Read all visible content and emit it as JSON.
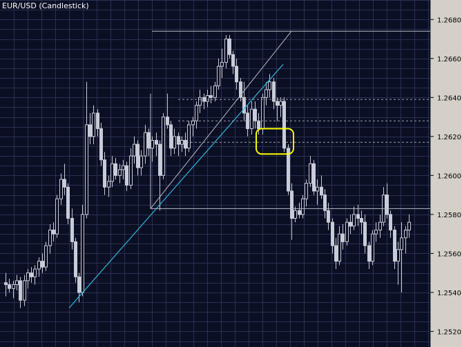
{
  "window": {
    "title": "EUR/USD (Candlestick)"
  },
  "chart_data": {
    "type": "candlestick",
    "title": "EUR/USD (Candlestick)",
    "symbol": "EUR/USD",
    "y_ticks": [
      "1.2520",
      "1.2540",
      "1.2560",
      "1.2580",
      "1.2600",
      "1.2620",
      "1.2640",
      "1.2660",
      "1.2680"
    ],
    "y_tick_values": [
      1.252,
      1.254,
      1.256,
      1.258,
      1.26,
      1.262,
      1.264,
      1.266,
      1.268
    ],
    "ylim": [
      1.2512,
      1.269
    ],
    "grid": true,
    "candles": [
      [
        1.2545,
        1.255,
        1.2538,
        1.2544
      ],
      [
        1.2544,
        1.2547,
        1.254,
        1.2542
      ],
      [
        1.2542,
        1.2546,
        1.2537,
        1.2544
      ],
      [
        1.2544,
        1.2549,
        1.2541,
        1.2546
      ],
      [
        1.2546,
        1.2548,
        1.2532,
        1.2536
      ],
      [
        1.2536,
        1.2549,
        1.2533,
        1.2546
      ],
      [
        1.2546,
        1.2552,
        1.2542,
        1.255
      ],
      [
        1.255,
        1.2553,
        1.2545,
        1.2548
      ],
      [
        1.2548,
        1.2554,
        1.2544,
        1.2552
      ],
      [
        1.2552,
        1.2558,
        1.2548,
        1.2556
      ],
      [
        1.2556,
        1.256,
        1.255,
        1.2553
      ],
      [
        1.2553,
        1.2566,
        1.2551,
        1.2564
      ],
      [
        1.2564,
        1.2575,
        1.256,
        1.2572
      ],
      [
        1.2572,
        1.2576,
        1.2566,
        1.257
      ],
      [
        1.257,
        1.259,
        1.2568,
        1.2588
      ],
      [
        1.2588,
        1.2601,
        1.2585,
        1.2598
      ],
      [
        1.2598,
        1.2606,
        1.259,
        1.2594
      ],
      [
        1.2594,
        1.2596,
        1.2575,
        1.2578
      ],
      [
        1.2578,
        1.2583,
        1.2562,
        1.2566
      ],
      [
        1.2566,
        1.2568,
        1.2545,
        1.2548
      ],
      [
        1.2548,
        1.255,
        1.2535,
        1.254
      ],
      [
        1.254,
        1.2585,
        1.2538,
        1.258
      ],
      [
        1.258,
        1.2648,
        1.2578,
        1.2626
      ],
      [
        1.2626,
        1.2632,
        1.2616,
        1.262
      ],
      [
        1.262,
        1.2636,
        1.2616,
        1.2632
      ],
      [
        1.2632,
        1.2634,
        1.262,
        1.2624
      ],
      [
        1.2624,
        1.2627,
        1.2605,
        1.2608
      ],
      [
        1.2608,
        1.2612,
        1.259,
        1.2594
      ],
      [
        1.2594,
        1.26,
        1.2589,
        1.2597
      ],
      [
        1.2597,
        1.261,
        1.2594,
        1.2606
      ],
      [
        1.2606,
        1.2609,
        1.2598,
        1.26
      ],
      [
        1.26,
        1.2606,
        1.2596,
        1.2603
      ],
      [
        1.2603,
        1.2608,
        1.2598,
        1.2605
      ],
      [
        1.2605,
        1.2607,
        1.2592,
        1.2595
      ],
      [
        1.2595,
        1.2614,
        1.2593,
        1.261
      ],
      [
        1.261,
        1.262,
        1.2606,
        1.2616
      ],
      [
        1.2616,
        1.2618,
        1.26,
        1.2604
      ],
      [
        1.2604,
        1.2613,
        1.26,
        1.261
      ],
      [
        1.261,
        1.2626,
        1.2606,
        1.2622
      ],
      [
        1.2622,
        1.2624,
        1.261,
        1.2614
      ],
      [
        1.2614,
        1.262,
        1.2607,
        1.2618
      ],
      [
        1.2618,
        1.2622,
        1.261,
        1.2616
      ],
      [
        1.2616,
        1.2618,
        1.2582,
        1.26
      ],
      [
        1.26,
        1.2632,
        1.2598,
        1.263
      ],
      [
        1.263,
        1.2642,
        1.2624,
        1.2626
      ],
      [
        1.2626,
        1.2628,
        1.261,
        1.2614
      ],
      [
        1.2614,
        1.2624,
        1.2611,
        1.262
      ],
      [
        1.262,
        1.2622,
        1.261,
        1.2616
      ],
      [
        1.2616,
        1.262,
        1.2612,
        1.2618
      ],
      [
        1.2618,
        1.2622,
        1.261,
        1.2614
      ],
      [
        1.2614,
        1.2628,
        1.2612,
        1.2626
      ],
      [
        1.2626,
        1.263,
        1.262,
        1.2628
      ],
      [
        1.2628,
        1.2638,
        1.2624,
        1.2636
      ],
      [
        1.2636,
        1.2644,
        1.2632,
        1.264
      ],
      [
        1.264,
        1.2642,
        1.2634,
        1.2638
      ],
      [
        1.2638,
        1.2644,
        1.2635,
        1.2641
      ],
      [
        1.2641,
        1.2646,
        1.2637,
        1.264
      ],
      [
        1.264,
        1.2648,
        1.2638,
        1.2646
      ],
      [
        1.2646,
        1.266,
        1.2644,
        1.2656
      ],
      [
        1.2656,
        1.2665,
        1.265,
        1.2658
      ],
      [
        1.2658,
        1.2672,
        1.2655,
        1.267
      ],
      [
        1.267,
        1.2672,
        1.266,
        1.2662
      ],
      [
        1.2662,
        1.2664,
        1.2652,
        1.2656
      ],
      [
        1.2656,
        1.266,
        1.2644,
        1.2648
      ],
      [
        1.2648,
        1.265,
        1.2638,
        1.264
      ],
      [
        1.264,
        1.2648,
        1.2628,
        1.2632
      ],
      [
        1.2632,
        1.2636,
        1.262,
        1.2624
      ],
      [
        1.2624,
        1.2638,
        1.2621,
        1.2634
      ],
      [
        1.2634,
        1.2638,
        1.2624,
        1.2628
      ],
      [
        1.2628,
        1.2632,
        1.2621,
        1.2624
      ],
      [
        1.2624,
        1.2642,
        1.2621,
        1.264
      ],
      [
        1.264,
        1.2648,
        1.2636,
        1.2644
      ],
      [
        1.2644,
        1.2652,
        1.264,
        1.2648
      ],
      [
        1.2648,
        1.265,
        1.2634,
        1.2638
      ],
      [
        1.2638,
        1.264,
        1.2628,
        1.2636
      ],
      [
        1.2636,
        1.264,
        1.263,
        1.2638
      ],
      [
        1.2638,
        1.264,
        1.2612,
        1.2614
      ],
      [
        1.2614,
        1.2616,
        1.259,
        1.2592
      ],
      [
        1.2592,
        1.2596,
        1.2567,
        1.2578
      ],
      [
        1.2578,
        1.2584,
        1.2576,
        1.2582
      ],
      [
        1.2582,
        1.2586,
        1.2578,
        1.258
      ],
      [
        1.258,
        1.259,
        1.2578,
        1.2588
      ],
      [
        1.2588,
        1.2598,
        1.2584,
        1.2596
      ],
      [
        1.2596,
        1.261,
        1.2594,
        1.2606
      ],
      [
        1.2606,
        1.2608,
        1.259,
        1.2592
      ],
      [
        1.2592,
        1.2598,
        1.2585,
        1.2594
      ],
      [
        1.2594,
        1.26,
        1.2588,
        1.259
      ],
      [
        1.259,
        1.2593,
        1.2578,
        1.2582
      ],
      [
        1.2582,
        1.2586,
        1.2572,
        1.2576
      ],
      [
        1.2576,
        1.2578,
        1.256,
        1.2564
      ],
      [
        1.2564,
        1.2568,
        1.2552,
        1.2556
      ],
      [
        1.2556,
        1.2574,
        1.2554,
        1.257
      ],
      [
        1.257,
        1.2575,
        1.2562,
        1.2566
      ],
      [
        1.2566,
        1.2578,
        1.2564,
        1.2576
      ],
      [
        1.2576,
        1.258,
        1.257,
        1.2574
      ],
      [
        1.2574,
        1.2584,
        1.2572,
        1.258
      ],
      [
        1.258,
        1.2585,
        1.2574,
        1.2578
      ],
      [
        1.2578,
        1.2582,
        1.257,
        1.2576
      ],
      [
        1.2576,
        1.258,
        1.256,
        1.2564
      ],
      [
        1.2564,
        1.2566,
        1.2552,
        1.2556
      ],
      [
        1.2556,
        1.2572,
        1.2554,
        1.257
      ],
      [
        1.257,
        1.2576,
        1.2566,
        1.2572
      ],
      [
        1.2572,
        1.258,
        1.2568,
        1.2576
      ],
      [
        1.2576,
        1.2594,
        1.2574,
        1.259
      ],
      [
        1.259,
        1.2596,
        1.2578,
        1.258
      ],
      [
        1.258,
        1.2582,
        1.2568,
        1.2572
      ],
      [
        1.2572,
        1.2574,
        1.2552,
        1.2556
      ],
      [
        1.2556,
        1.2566,
        1.2544,
        1.2562
      ],
      [
        1.2562,
        1.2576,
        1.254,
        1.2568
      ],
      [
        1.2568,
        1.2574,
        1.256,
        1.2572
      ],
      [
        1.2572,
        1.258,
        1.2568,
        1.2576
      ]
    ]
  }
}
